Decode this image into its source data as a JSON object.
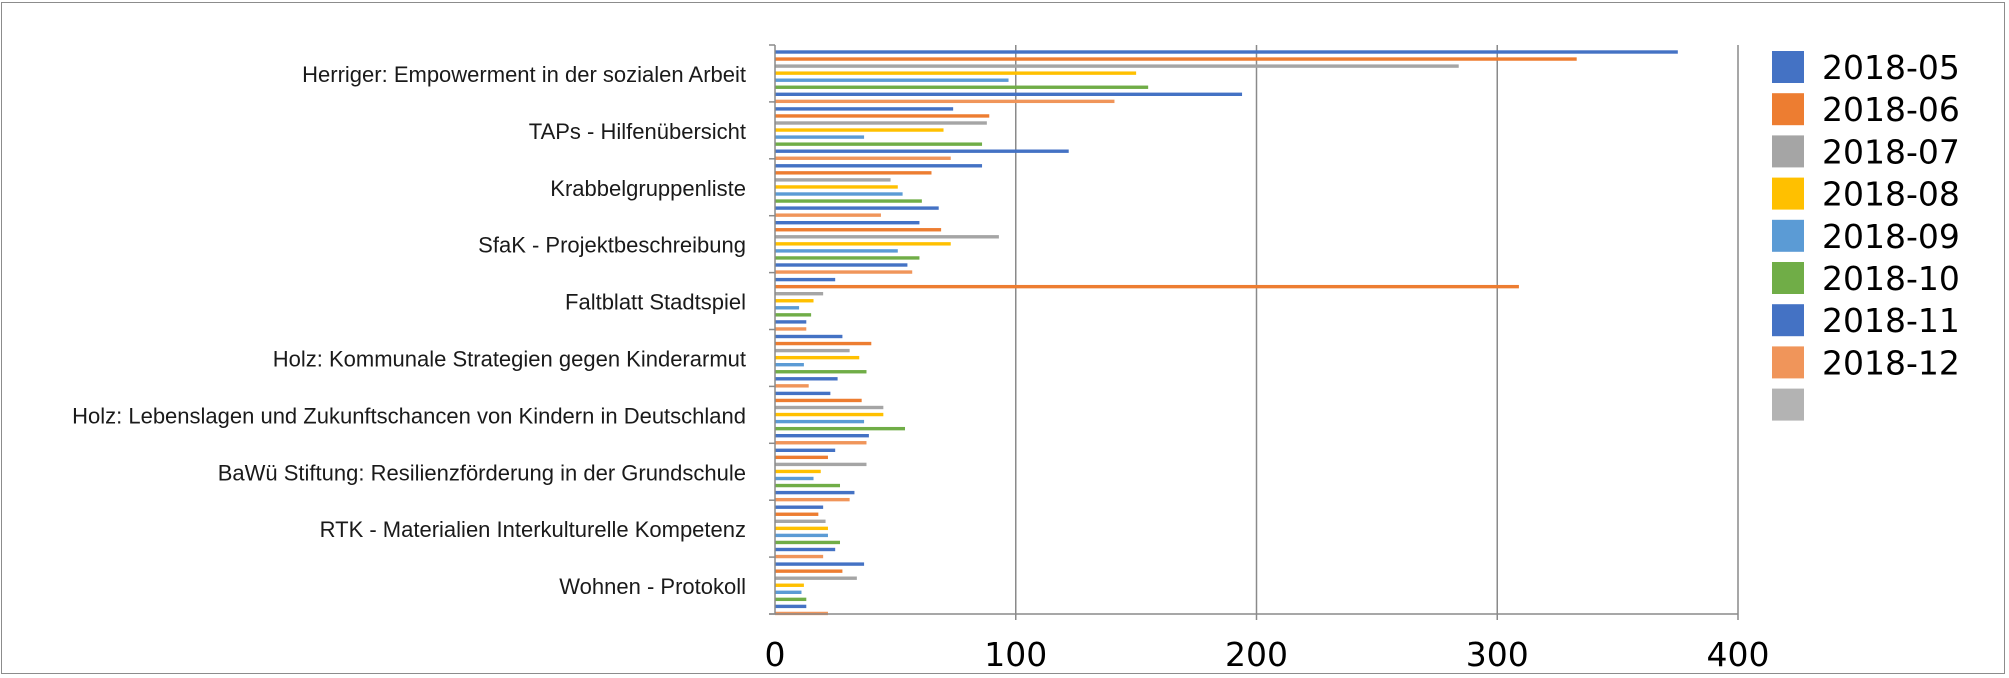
{
  "chart_data": {
    "type": "bar",
    "orientation": "horizontal",
    "categories": [
      "Herriger: Empowerment in der sozialen Arbeit",
      "TAPs - Hilfenübersicht",
      "Krabbelgruppenliste",
      "SfaK - Projektbeschreibung",
      "Faltblatt Stadtspiel",
      "Holz: Kommunale Strategien gegen Kinderarmut",
      "Holz: Lebenslagen und Zukunftschancen von Kindern in Deutschland",
      "BaWü Stiftung: Resilienzförderung in der Grundschule",
      "RTK - Materialien Interkulturelle Kompetenz",
      "Wohnen - Protokoll"
    ],
    "series": [
      {
        "name": "2018-05",
        "color": "#4472c4",
        "values": [
          375,
          74,
          86,
          60,
          25,
          28,
          23,
          25,
          20,
          37
        ]
      },
      {
        "name": "2018-06",
        "color": "#ed7d31",
        "values": [
          333,
          89,
          65,
          69,
          309,
          40,
          36,
          22,
          18,
          28
        ]
      },
      {
        "name": "2018-07",
        "color": "#a5a5a5",
        "values": [
          284,
          88,
          48,
          93,
          20,
          31,
          45,
          38,
          21,
          34
        ]
      },
      {
        "name": "2018-08",
        "color": "#ffc000",
        "values": [
          150,
          70,
          51,
          73,
          16,
          35,
          45,
          19,
          22,
          12
        ]
      },
      {
        "name": "2018-09",
        "color": "#5b9bd5",
        "values": [
          97,
          37,
          53,
          51,
          10,
          12,
          37,
          16,
          22,
          11
        ]
      },
      {
        "name": "2018-10",
        "color": "#70ad47",
        "values": [
          155,
          86,
          61,
          60,
          15,
          38,
          54,
          27,
          27,
          13
        ]
      },
      {
        "name": "2018-11",
        "color": "#4472c4",
        "values": [
          194,
          122,
          68,
          55,
          13,
          26,
          39,
          33,
          25,
          13
        ]
      },
      {
        "name": "2018-12",
        "color": "#f0955a",
        "values": [
          141,
          73,
          44,
          57,
          13,
          14,
          38,
          31,
          20,
          22
        ]
      },
      {
        "name": "",
        "color": "#b3b3b3",
        "values": [
          0,
          0,
          0,
          0,
          0,
          0,
          0,
          0,
          0,
          0
        ]
      }
    ],
    "xticks": [
      "0",
      "100",
      "200",
      "300",
      "400"
    ],
    "xlim": [
      0,
      400
    ],
    "grid": "vertical",
    "legend_placement": "right",
    "title": "",
    "xlabel": "",
    "ylabel": ""
  }
}
